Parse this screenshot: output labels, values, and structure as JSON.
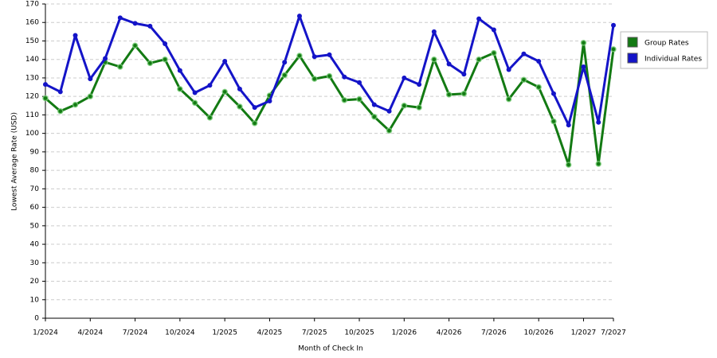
{
  "chart_data": {
    "type": "line",
    "x_label": "Month of Check In",
    "y_label": "Lowest Average Rate (USD)",
    "categories": [
      "1/2024",
      null,
      null,
      "4/2024",
      null,
      null,
      "7/2024",
      null,
      null,
      "10/2024",
      null,
      null,
      "1/2025",
      null,
      null,
      "4/2025",
      null,
      null,
      "7/2025",
      null,
      null,
      "10/2025",
      null,
      null,
      "1/2026",
      null,
      null,
      "4/2026",
      null,
      null,
      "7/2026",
      null,
      null,
      "10/2026",
      null,
      null,
      "1/2027",
      null,
      "7/2027"
    ],
    "series": [
      {
        "name": "Group Rates",
        "color": "#137a13",
        "values": [
          119,
          112,
          115.5,
          120,
          138.5,
          136,
          147.5,
          138,
          140,
          124,
          116.5,
          108.5,
          122.5,
          114.5,
          105.5,
          120.5,
          131.5,
          142,
          129.5,
          131,
          118,
          118.5,
          109,
          101.5,
          115,
          114,
          140,
          121,
          121.5,
          140,
          143.5,
          118.5,
          129,
          125,
          106.5,
          83,
          149,
          83.5,
          145.5
        ]
      },
      {
        "name": "Individual Rates",
        "color": "#1414c8",
        "values": [
          126.5,
          122.5,
          153,
          129.5,
          140.5,
          162.5,
          159.5,
          158,
          148.5,
          134,
          122,
          126,
          139,
          124,
          114,
          117.5,
          138.5,
          163.5,
          141.5,
          142.5,
          130.5,
          127.5,
          115.5,
          112,
          130,
          126.5,
          155,
          137.5,
          132,
          162,
          156,
          134.5,
          143,
          139,
          121.5,
          104.5,
          136,
          106,
          158.5
        ]
      }
    ],
    "ylim": [
      0,
      170
    ],
    "yticks": [
      0,
      10,
      20,
      30,
      40,
      50,
      60,
      70,
      80,
      90,
      100,
      110,
      120,
      130,
      140,
      150,
      160,
      170
    ],
    "grid": true,
    "legend": "right"
  }
}
